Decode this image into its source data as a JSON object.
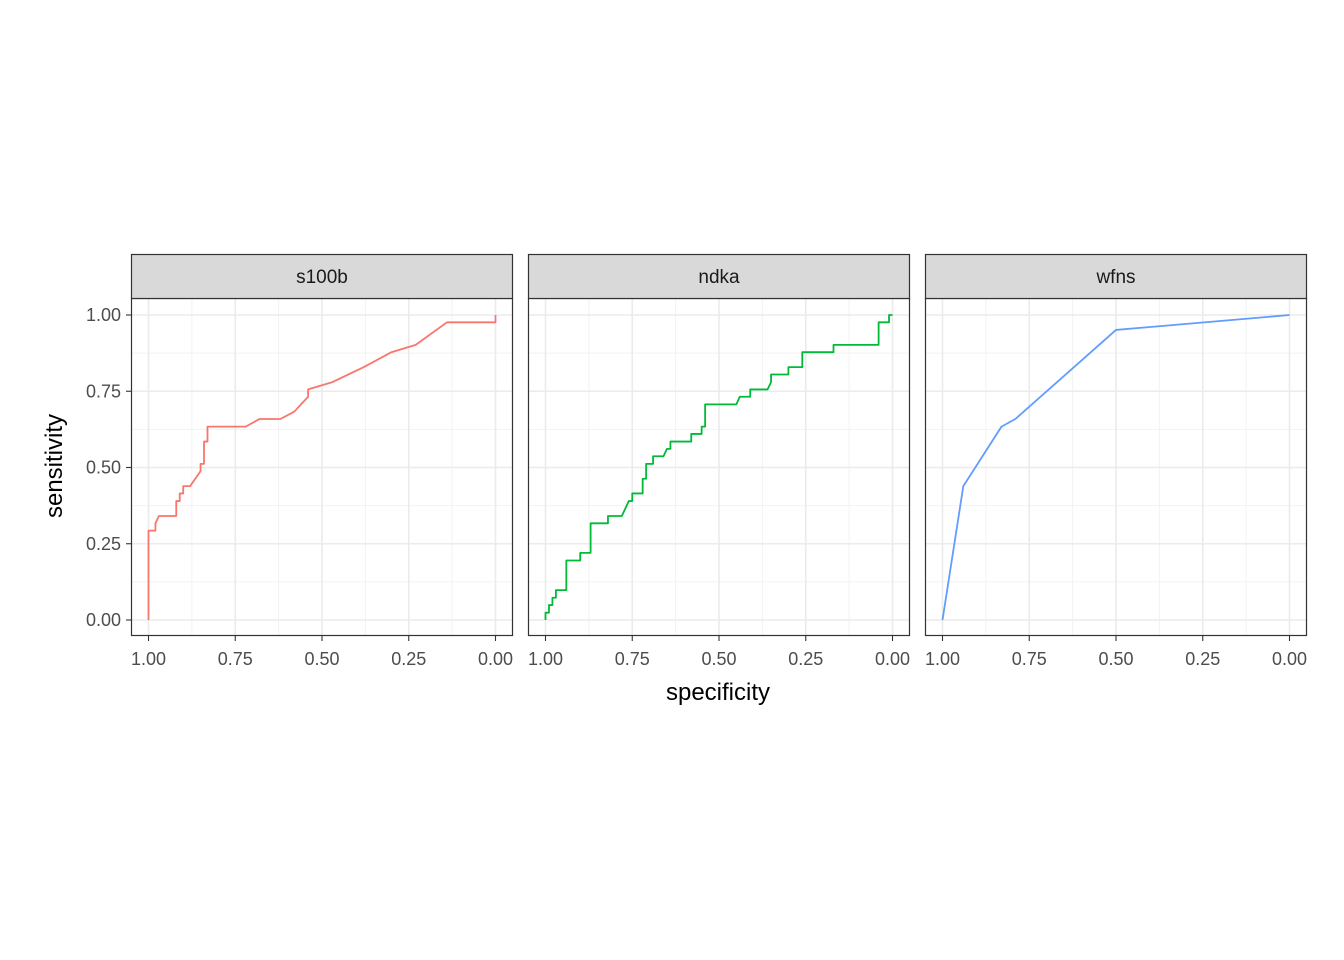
{
  "chart_data": {
    "type": "line",
    "xlabel": "specificity",
    "ylabel": "sensitivity",
    "x_reversed": true,
    "xlim": [
      1.0,
      0.0
    ],
    "ylim": [
      0.0,
      1.0
    ],
    "x_ticks": [
      1.0,
      0.75,
      0.5,
      0.25,
      0.0
    ],
    "x_tick_labels": [
      "1.00",
      "0.75",
      "0.50",
      "0.25",
      "0.00"
    ],
    "y_ticks": [
      0.0,
      0.25,
      0.5,
      0.75,
      1.0
    ],
    "y_tick_labels": [
      "0.00",
      "0.25",
      "0.50",
      "0.75",
      "1.00"
    ],
    "grid": true,
    "legend": "none",
    "panels": [
      {
        "label": "s100b",
        "color": "#F8766D",
        "points": [
          [
            1.0,
            0.0
          ],
          [
            1.0,
            0.293
          ],
          [
            0.98,
            0.293
          ],
          [
            0.98,
            0.317
          ],
          [
            0.97,
            0.341
          ],
          [
            0.92,
            0.341
          ],
          [
            0.92,
            0.39
          ],
          [
            0.91,
            0.39
          ],
          [
            0.91,
            0.415
          ],
          [
            0.9,
            0.415
          ],
          [
            0.9,
            0.439
          ],
          [
            0.88,
            0.439
          ],
          [
            0.85,
            0.488
          ],
          [
            0.85,
            0.512
          ],
          [
            0.84,
            0.512
          ],
          [
            0.84,
            0.585
          ],
          [
            0.83,
            0.585
          ],
          [
            0.83,
            0.634
          ],
          [
            0.76,
            0.634
          ],
          [
            0.72,
            0.634
          ],
          [
            0.68,
            0.659
          ],
          [
            0.62,
            0.659
          ],
          [
            0.58,
            0.683
          ],
          [
            0.54,
            0.732
          ],
          [
            0.54,
            0.756
          ],
          [
            0.47,
            0.78
          ],
          [
            0.38,
            0.829
          ],
          [
            0.3,
            0.878
          ],
          [
            0.23,
            0.902
          ],
          [
            0.14,
            0.976
          ],
          [
            0.0,
            0.976
          ],
          [
            0.0,
            1.0
          ]
        ]
      },
      {
        "label": "ndka",
        "color": "#00BA38",
        "points": [
          [
            1.0,
            0.0
          ],
          [
            1.0,
            0.024
          ],
          [
            0.99,
            0.024
          ],
          [
            0.99,
            0.049
          ],
          [
            0.98,
            0.049
          ],
          [
            0.98,
            0.073
          ],
          [
            0.97,
            0.073
          ],
          [
            0.97,
            0.098
          ],
          [
            0.94,
            0.098
          ],
          [
            0.94,
            0.195
          ],
          [
            0.9,
            0.195
          ],
          [
            0.9,
            0.22
          ],
          [
            0.87,
            0.22
          ],
          [
            0.87,
            0.317
          ],
          [
            0.82,
            0.317
          ],
          [
            0.82,
            0.341
          ],
          [
            0.78,
            0.341
          ],
          [
            0.76,
            0.39
          ],
          [
            0.75,
            0.39
          ],
          [
            0.75,
            0.415
          ],
          [
            0.72,
            0.415
          ],
          [
            0.72,
            0.463
          ],
          [
            0.71,
            0.463
          ],
          [
            0.71,
            0.512
          ],
          [
            0.69,
            0.512
          ],
          [
            0.69,
            0.537
          ],
          [
            0.66,
            0.537
          ],
          [
            0.65,
            0.561
          ],
          [
            0.64,
            0.561
          ],
          [
            0.64,
            0.585
          ],
          [
            0.58,
            0.585
          ],
          [
            0.58,
            0.61
          ],
          [
            0.55,
            0.61
          ],
          [
            0.55,
            0.634
          ],
          [
            0.54,
            0.634
          ],
          [
            0.54,
            0.707
          ],
          [
            0.45,
            0.707
          ],
          [
            0.44,
            0.732
          ],
          [
            0.41,
            0.732
          ],
          [
            0.41,
            0.756
          ],
          [
            0.36,
            0.756
          ],
          [
            0.35,
            0.78
          ],
          [
            0.35,
            0.805
          ],
          [
            0.3,
            0.805
          ],
          [
            0.3,
            0.829
          ],
          [
            0.26,
            0.829
          ],
          [
            0.26,
            0.878
          ],
          [
            0.17,
            0.878
          ],
          [
            0.17,
            0.902
          ],
          [
            0.04,
            0.902
          ],
          [
            0.04,
            0.976
          ],
          [
            0.01,
            0.976
          ],
          [
            0.01,
            1.0
          ],
          [
            0.0,
            1.0
          ]
        ]
      },
      {
        "label": "wfns",
        "color": "#619CFF",
        "points": [
          [
            1.0,
            0.0
          ],
          [
            0.94,
            0.439
          ],
          [
            0.83,
            0.634
          ],
          [
            0.79,
            0.659
          ],
          [
            0.5,
            0.951
          ],
          [
            0.0,
            1.0
          ]
        ]
      }
    ]
  }
}
